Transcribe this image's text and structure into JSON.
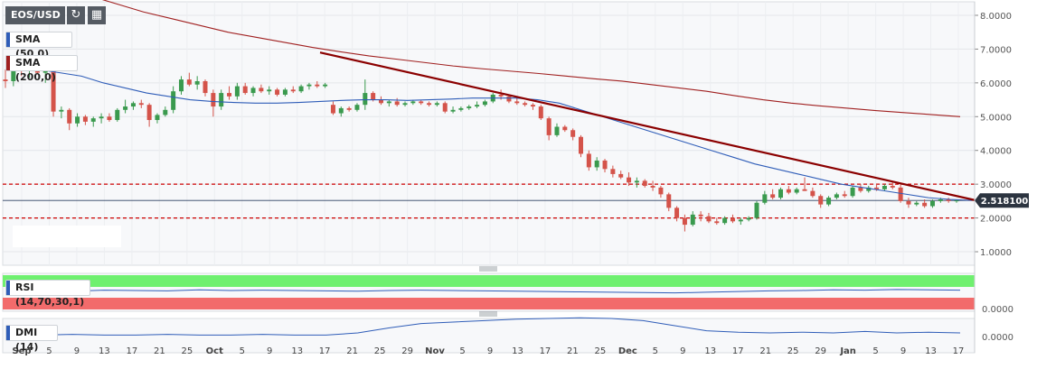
{
  "toolbar": {
    "symbol": "EOS/USD",
    "refresh_icon": "refresh-icon",
    "calendar_icon": "calendar-icon"
  },
  "indicators": {
    "sma50_label": "SMA (50,0)",
    "sma200_label": "SMA (200,0)",
    "rsi_label": "RSI (14,70,30,1)",
    "dmi_label": "DMI (14)",
    "rsi_value_label": "0.0000",
    "dmi_value_label": "0.0000"
  },
  "colors": {
    "up": "#3a9a4e",
    "down": "#d4534a",
    "sma50": "#2f5db8",
    "sma200": "#a02020",
    "trendline": "#8b0000",
    "levels": "#cc0000",
    "price_box": "#2c3440",
    "rsi_overbought": "#6ff06f",
    "rsi_oversold": "#f26b6b"
  },
  "chart_data": {
    "type": "candlestick",
    "price_axis": {
      "ticks": [
        "8.0000",
        "7.0000",
        "6.0000",
        "5.0000",
        "4.0000",
        "3.0000",
        "2.0000",
        "1.0000"
      ],
      "min": 0.6,
      "max": 8.4
    },
    "current_price": "2.518100",
    "horizontal_levels": [
      3.0,
      2.0
    ],
    "trendline": {
      "from": [
        "Nov 1",
        6.9
      ],
      "to": [
        "Jan 19",
        2.53
      ]
    },
    "x_ticks": [
      "Sep",
      "5",
      "9",
      "13",
      "17",
      "21",
      "25",
      "Oct",
      "5",
      "9",
      "13",
      "17",
      "21",
      "25",
      "29",
      "Nov",
      "5",
      "9",
      "13",
      "17",
      "21",
      "25",
      "Dec",
      "5",
      "9",
      "13",
      "17",
      "21",
      "25",
      "29",
      "Jan",
      "5",
      "9",
      "13",
      "17"
    ],
    "candles": [
      [
        6.1,
        6.4,
        5.85,
        6.05
      ],
      [
        6.05,
        6.45,
        5.9,
        6.4
      ],
      [
        6.4,
        6.5,
        6.2,
        6.35
      ],
      [
        6.35,
        6.6,
        6.15,
        6.45
      ],
      [
        6.45,
        6.55,
        6.25,
        6.3
      ],
      [
        6.3,
        6.5,
        6.0,
        6.4
      ],
      [
        6.4,
        6.5,
        5.0,
        5.15
      ],
      [
        5.15,
        5.3,
        4.95,
        5.2
      ],
      [
        5.2,
        5.25,
        4.6,
        4.8
      ],
      [
        4.8,
        5.1,
        4.7,
        5.0
      ],
      [
        5.0,
        5.05,
        4.75,
        4.85
      ],
      [
        4.85,
        5.0,
        4.7,
        4.95
      ],
      [
        4.95,
        5.1,
        4.8,
        5.0
      ],
      [
        5.0,
        5.1,
        4.85,
        4.9
      ],
      [
        4.9,
        5.25,
        4.85,
        5.2
      ],
      [
        5.2,
        5.5,
        5.1,
        5.3
      ],
      [
        5.3,
        5.45,
        5.2,
        5.4
      ],
      [
        5.4,
        5.5,
        5.25,
        5.35
      ],
      [
        5.35,
        5.4,
        4.7,
        4.9
      ],
      [
        4.9,
        5.1,
        4.8,
        5.05
      ],
      [
        5.05,
        5.3,
        5.0,
        5.2
      ],
      [
        5.2,
        5.9,
        5.1,
        5.75
      ],
      [
        5.75,
        6.2,
        5.65,
        6.1
      ],
      [
        6.1,
        6.3,
        5.9,
        5.95
      ],
      [
        5.95,
        6.2,
        5.8,
        6.05
      ],
      [
        6.05,
        6.1,
        5.6,
        5.7
      ],
      [
        5.7,
        5.8,
        5.0,
        5.3
      ],
      [
        5.3,
        5.8,
        5.2,
        5.7
      ],
      [
        5.7,
        5.9,
        5.5,
        5.6
      ],
      [
        5.6,
        6.0,
        5.5,
        5.9
      ],
      [
        5.9,
        6.0,
        5.65,
        5.7
      ],
      [
        5.7,
        5.9,
        5.6,
        5.85
      ],
      [
        5.85,
        5.95,
        5.7,
        5.75
      ],
      [
        5.75,
        5.9,
        5.65,
        5.8
      ],
      [
        5.8,
        5.85,
        5.6,
        5.65
      ],
      [
        5.65,
        5.85,
        5.6,
        5.8
      ],
      [
        5.8,
        5.9,
        5.7,
        5.75
      ],
      [
        5.75,
        5.95,
        5.7,
        5.9
      ],
      [
        5.9,
        6.0,
        5.8,
        5.95
      ],
      [
        5.95,
        6.05,
        5.85,
        5.9
      ],
      [
        5.9,
        6.0,
        5.85,
        5.95
      ],
      [
        5.35,
        5.45,
        5.05,
        5.1
      ],
      [
        5.1,
        5.3,
        5.0,
        5.25
      ],
      [
        5.25,
        5.3,
        5.15,
        5.2
      ],
      [
        5.2,
        5.4,
        5.15,
        5.35
      ],
      [
        5.35,
        6.1,
        5.2,
        5.7
      ],
      [
        5.7,
        5.75,
        5.45,
        5.5
      ],
      [
        5.5,
        5.6,
        5.35,
        5.4
      ],
      [
        5.4,
        5.5,
        5.3,
        5.45
      ],
      [
        5.45,
        5.55,
        5.3,
        5.35
      ],
      [
        5.35,
        5.45,
        5.3,
        5.4
      ],
      [
        5.4,
        5.5,
        5.35,
        5.45
      ],
      [
        5.45,
        5.5,
        5.35,
        5.4
      ],
      [
        5.4,
        5.45,
        5.3,
        5.35
      ],
      [
        5.35,
        5.45,
        5.3,
        5.4
      ],
      [
        5.4,
        5.45,
        5.1,
        5.15
      ],
      [
        5.15,
        5.3,
        5.1,
        5.2
      ],
      [
        5.2,
        5.3,
        5.15,
        5.25
      ],
      [
        5.25,
        5.35,
        5.2,
        5.3
      ],
      [
        5.3,
        5.45,
        5.25,
        5.35
      ],
      [
        5.35,
        5.5,
        5.3,
        5.45
      ],
      [
        5.45,
        5.7,
        5.4,
        5.65
      ],
      [
        5.65,
        5.8,
        5.5,
        5.6
      ],
      [
        5.6,
        5.65,
        5.4,
        5.45
      ],
      [
        5.45,
        5.55,
        5.35,
        5.4
      ],
      [
        5.4,
        5.45,
        5.3,
        5.35
      ],
      [
        5.35,
        5.4,
        5.2,
        5.3
      ],
      [
        5.3,
        5.35,
        4.9,
        4.95
      ],
      [
        4.95,
        5.0,
        4.3,
        4.45
      ],
      [
        4.45,
        4.8,
        4.4,
        4.7
      ],
      [
        4.7,
        4.75,
        4.55,
        4.6
      ],
      [
        4.6,
        4.65,
        4.3,
        4.4
      ],
      [
        4.4,
        4.45,
        3.8,
        3.9
      ],
      [
        3.9,
        4.0,
        3.4,
        3.5
      ],
      [
        3.5,
        3.8,
        3.4,
        3.7
      ],
      [
        3.7,
        3.75,
        3.35,
        3.45
      ],
      [
        3.45,
        3.55,
        3.2,
        3.3
      ],
      [
        3.3,
        3.4,
        3.15,
        3.2
      ],
      [
        3.2,
        3.35,
        2.95,
        3.05
      ],
      [
        3.05,
        3.2,
        2.9,
        3.1
      ],
      [
        3.1,
        3.15,
        2.9,
        2.95
      ],
      [
        2.95,
        3.1,
        2.8,
        2.9
      ],
      [
        2.9,
        2.95,
        2.6,
        2.7
      ],
      [
        2.7,
        2.75,
        2.2,
        2.3
      ],
      [
        2.3,
        2.35,
        1.9,
        2.0
      ],
      [
        2.0,
        2.1,
        1.6,
        1.8
      ],
      [
        1.8,
        2.2,
        1.75,
        2.1
      ],
      [
        2.1,
        2.2,
        1.9,
        2.05
      ],
      [
        2.05,
        2.15,
        1.85,
        1.9
      ],
      [
        1.9,
        2.0,
        1.8,
        1.85
      ],
      [
        1.85,
        2.05,
        1.8,
        2.0
      ],
      [
        2.0,
        2.1,
        1.85,
        1.9
      ],
      [
        1.9,
        2.0,
        1.8,
        1.95
      ],
      [
        1.95,
        2.05,
        1.9,
        2.0
      ],
      [
        2.0,
        2.5,
        1.95,
        2.45
      ],
      [
        2.45,
        2.8,
        2.4,
        2.7
      ],
      [
        2.7,
        2.85,
        2.55,
        2.6
      ],
      [
        2.6,
        2.9,
        2.55,
        2.85
      ],
      [
        2.85,
        2.95,
        2.7,
        2.75
      ],
      [
        2.75,
        2.9,
        2.7,
        2.85
      ],
      [
        2.85,
        3.2,
        2.8,
        2.8
      ],
      [
        2.8,
        2.9,
        2.6,
        2.65
      ],
      [
        2.65,
        2.7,
        2.3,
        2.4
      ],
      [
        2.4,
        2.65,
        2.35,
        2.6
      ],
      [
        2.6,
        2.75,
        2.55,
        2.7
      ],
      [
        2.7,
        2.8,
        2.6,
        2.65
      ],
      [
        2.65,
        2.95,
        2.6,
        2.9
      ],
      [
        2.9,
        3.0,
        2.75,
        2.8
      ],
      [
        2.8,
        2.95,
        2.75,
        2.9
      ],
      [
        2.9,
        3.0,
        2.8,
        2.85
      ],
      [
        2.85,
        3.0,
        2.8,
        2.95
      ],
      [
        2.95,
        3.05,
        2.85,
        2.9
      ],
      [
        2.9,
        3.0,
        2.45,
        2.5
      ],
      [
        2.5,
        2.6,
        2.3,
        2.4
      ],
      [
        2.4,
        2.5,
        2.35,
        2.45
      ],
      [
        2.45,
        2.55,
        2.3,
        2.35
      ],
      [
        2.35,
        2.55,
        2.3,
        2.5
      ],
      [
        2.5,
        2.6,
        2.45,
        2.55
      ],
      [
        2.55,
        2.6,
        2.45,
        2.5
      ],
      [
        2.5,
        2.55,
        2.45,
        2.52
      ]
    ],
    "sma50": [
      6.45,
      6.4,
      6.3,
      6.2,
      6.0,
      5.85,
      5.7,
      5.6,
      5.5,
      5.45,
      5.42,
      5.4,
      5.4,
      5.42,
      5.45,
      5.48,
      5.5,
      5.5,
      5.48,
      5.5,
      5.52,
      5.55,
      5.55,
      5.55,
      5.5,
      5.4,
      5.2,
      5.0,
      4.8,
      4.6,
      4.4,
      4.2,
      4.0,
      3.8,
      3.6,
      3.45,
      3.3,
      3.15,
      3.0,
      2.9,
      2.8,
      2.7,
      2.6,
      2.55,
      2.52
    ],
    "sma200": [
      9.4,
      9.1,
      8.85,
      8.6,
      8.35,
      8.1,
      7.9,
      7.7,
      7.5,
      7.35,
      7.2,
      7.05,
      6.92,
      6.8,
      6.7,
      6.6,
      6.5,
      6.42,
      6.35,
      6.28,
      6.2,
      6.12,
      6.05,
      5.95,
      5.85,
      5.75,
      5.62,
      5.5,
      5.4,
      5.32,
      5.25,
      5.18,
      5.12,
      5.06,
      5.0
    ],
    "rsi": [
      52,
      50,
      48,
      51,
      50,
      49,
      52,
      50,
      51,
      50,
      49,
      48,
      50,
      51,
      50,
      49,
      48,
      47,
      46,
      45,
      44,
      43,
      45,
      47,
      49,
      50,
      52,
      51,
      53,
      52,
      51
    ],
    "dmi": [
      0.02,
      0.02,
      0.03,
      0.02,
      0.02,
      0.03,
      0.02,
      0.02,
      0.03,
      0.02,
      0.02,
      0.05,
      0.12,
      0.18,
      0.2,
      0.22,
      0.24,
      0.25,
      0.26,
      0.25,
      0.22,
      0.15,
      0.08,
      0.06,
      0.05,
      0.06,
      0.05,
      0.07,
      0.05,
      0.06,
      0.05
    ]
  }
}
